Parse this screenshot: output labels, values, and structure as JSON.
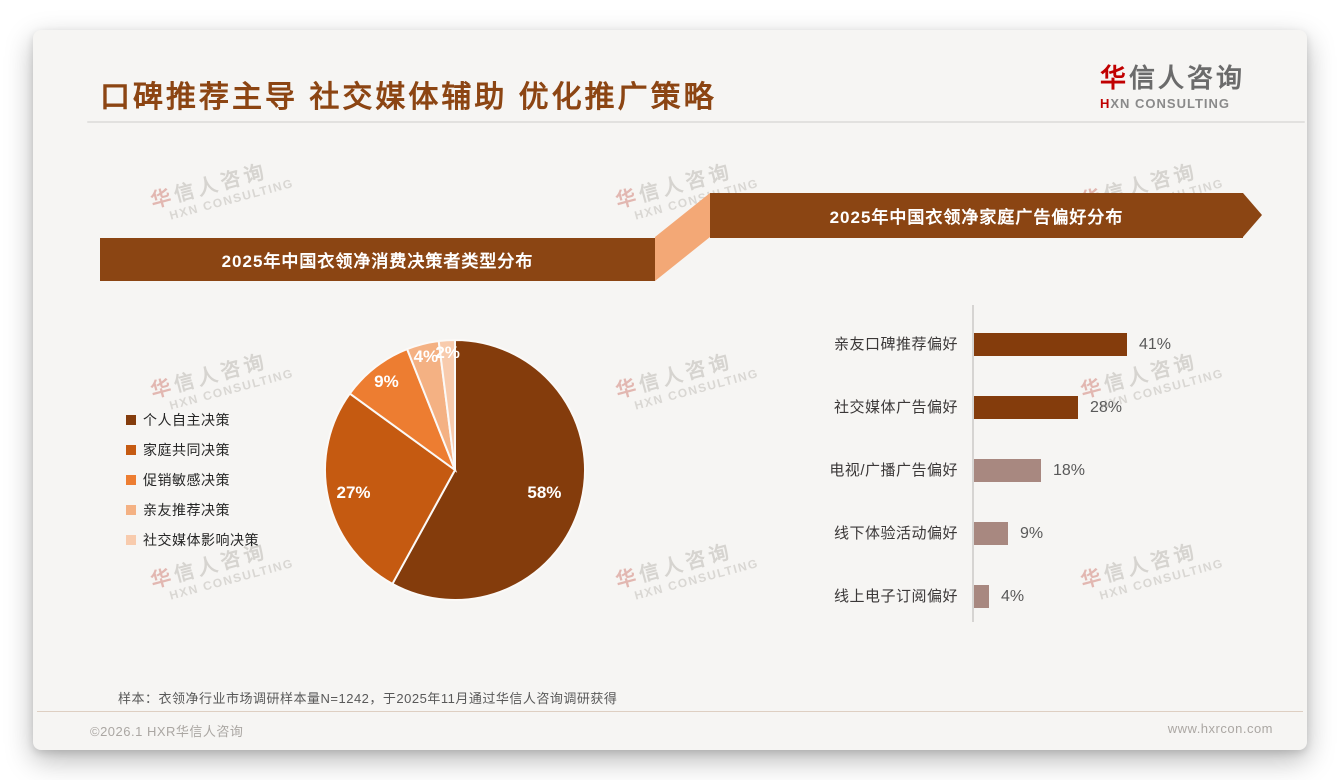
{
  "header": {
    "title": "口碑推荐主导 社交媒体辅助 优化推广策略",
    "logo": {
      "cn_first": "华",
      "cn_rest": "信人咨询",
      "en_first": "H",
      "en_rest": "XN CONSULTING"
    }
  },
  "banners": {
    "left": "2025年中国衣领净消费决策者类型分布",
    "right": "2025年中国衣领净家庭广告偏好分布"
  },
  "watermark": {
    "cn_first": "华",
    "cn_rest": "信人咨询",
    "en": "HXN CONSULTING"
  },
  "colors": {
    "title_color": "#8C4513",
    "banner_brown": "#8B4513",
    "connector_peach": "#F3A876",
    "logo_red": "#C00000"
  },
  "chart_data": [
    {
      "type": "pie",
      "title": "2025年中国衣领净消费决策者类型分布",
      "labels": [
        "个人自主决策",
        "家庭共同决策",
        "促销敏感决策",
        "亲友推荐决策",
        "社交媒体影响决策"
      ],
      "values": [
        58,
        27,
        9,
        4,
        2
      ],
      "value_labels": [
        "58%",
        "27%",
        "9%",
        "4%",
        "2%"
      ],
      "colors": [
        "#843C0C",
        "#C55A11",
        "#ED7D31",
        "#F4B183",
        "#F8CBAD"
      ],
      "unit": "%",
      "start_angle_deg": 0,
      "direction": "clockwise",
      "legend_position": "left"
    },
    {
      "type": "bar",
      "title": "2025年中国衣领净家庭广告偏好分布",
      "orientation": "horizontal",
      "categories": [
        "亲友口碑推荐偏好",
        "社交媒体广告偏好",
        "电视/广播广告偏好",
        "线下体验活动偏好",
        "线上电子订阅偏好"
      ],
      "values": [
        41,
        28,
        18,
        9,
        4
      ],
      "value_labels": [
        "41%",
        "28%",
        "18%",
        "9%",
        "4%"
      ],
      "bar_colors": [
        "#843C0C",
        "#843C0C",
        "#A88880",
        "#A88880",
        "#A88880"
      ],
      "unit": "%",
      "xlim": [
        0,
        45
      ],
      "grid": false,
      "legend_position": "none"
    }
  ],
  "footnote": "样本：衣领净行业市场调研样本量N=1242，于2025年11月通过华信人咨询调研获得",
  "footer": {
    "left": "©2026.1 HXR华信人咨询",
    "right": "www.hxrcon.com"
  }
}
